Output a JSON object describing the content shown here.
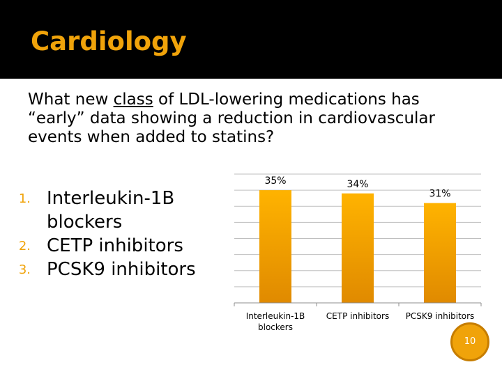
{
  "header": {
    "title": "Cardiology"
  },
  "question": {
    "before": "What new ",
    "underlined": "class",
    "after": " of LDL-lowering medications has “early” data showing a reduction in cardiovascular events when added to statins?"
  },
  "options": [
    {
      "number": "1.",
      "label": "Interleukin-1B blockers"
    },
    {
      "number": "2.",
      "label": "CETP inhibitors"
    },
    {
      "number": "3.",
      "label": "PCSK9 inhibitors"
    }
  ],
  "chart_data": {
    "type": "bar",
    "categories": [
      "Interleukin-1B blockers",
      "CETP inhibitors",
      "PCSK9 inhibitors"
    ],
    "category_lines": [
      [
        "Interleukin-1B",
        "blockers"
      ],
      [
        "CETP inhibitors"
      ],
      [
        "PCSK9 inhibitors"
      ]
    ],
    "values": [
      35,
      34,
      31
    ],
    "value_labels": [
      "35%",
      "34%",
      "31%"
    ],
    "ylim": [
      0,
      40
    ],
    "grid": true,
    "title": "",
    "xlabel": "",
    "ylabel": ""
  },
  "colors": {
    "accent": "#f0a30a",
    "bar_top": "#ffb300",
    "bar_bottom": "#e08a00",
    "grid": "#bfbfbf"
  },
  "page": {
    "number": "10"
  }
}
